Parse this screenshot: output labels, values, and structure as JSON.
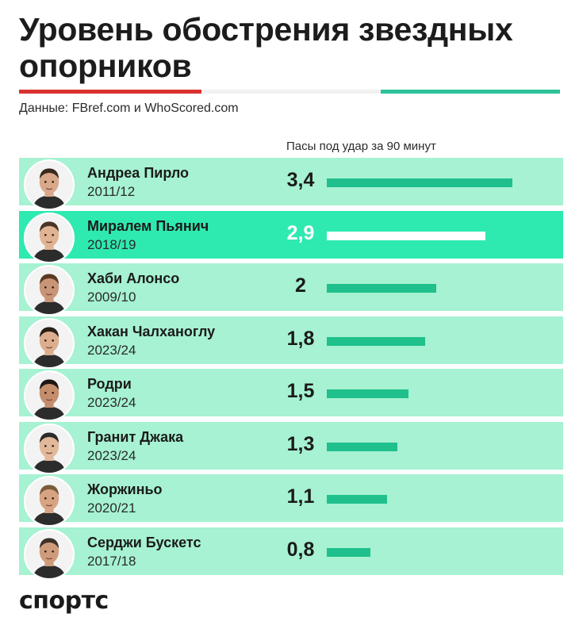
{
  "header": {
    "title": "Уровень обострения звездных опорников",
    "source": "Данные: FBref.com и WhoScored.com",
    "column_label": "Пасы под удар за 90 минут"
  },
  "colors": {
    "row_bg": "#a6f2d2",
    "row_highlight_bg": "#2eeab0",
    "bar": "#1fc08c",
    "bar_highlight": "#ffffff",
    "flag_red": "#d9322f",
    "flag_white": "#f1f1f1",
    "flag_green": "#2ec19a"
  },
  "chart_data": {
    "type": "bar",
    "orientation": "horizontal",
    "title": "Уровень обострения звездных опорников",
    "xlabel": "Пасы под удар за 90 минут",
    "xlim": [
      0,
      3.4
    ],
    "highlight_index": 1,
    "players": [
      {
        "name": "Андреа Пирло",
        "season": "2011/12",
        "value": 3.4,
        "label": "3,4"
      },
      {
        "name": "Миралем Пьянич",
        "season": "2018/19",
        "value": 2.9,
        "label": "2,9"
      },
      {
        "name": "Хаби Алонсо",
        "season": "2009/10",
        "value": 2.0,
        "label": "2"
      },
      {
        "name": "Хакан Чалханоглу",
        "season": "2023/24",
        "value": 1.8,
        "label": "1,8"
      },
      {
        "name": "Родри",
        "season": "2023/24",
        "value": 1.5,
        "label": "1,5"
      },
      {
        "name": "Гранит Джака",
        "season": "2023/24",
        "value": 1.3,
        "label": "1,3"
      },
      {
        "name": "Жоржиньо",
        "season": "2020/21",
        "value": 1.1,
        "label": "1,1"
      },
      {
        "name": "Серджи Бускетс",
        "season": "2017/18",
        "value": 0.8,
        "label": "0,8"
      }
    ]
  },
  "footer": {
    "logo": "спортс"
  }
}
